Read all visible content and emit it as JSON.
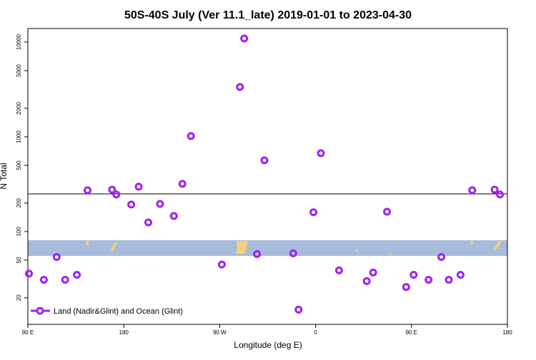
{
  "chart_data": {
    "type": "scatter",
    "title": "50S-40S July (Ver 11.1_late)   2019-01-01 to 2023-04-30",
    "x_label": "Longitude (deg E)",
    "y_label": "N Total",
    "log_y": true,
    "xlim": [
      90,
      540
    ],
    "xticks": [
      {
        "value": 90,
        "label": "90 E"
      },
      {
        "value": 180,
        "label": "180"
      },
      {
        "value": 270,
        "label": "90 W"
      },
      {
        "value": 360,
        "label": "0"
      },
      {
        "value": 450,
        "label": "90 E"
      },
      {
        "value": 540,
        "label": "180"
      }
    ],
    "ylim": [
      10.5,
      13900
    ],
    "yticks": [
      20,
      50,
      100,
      200,
      500,
      1000,
      2000,
      5000,
      10000
    ],
    "hline": 250,
    "series": [
      {
        "name": "Land (Nadir&Glint) and Ocean (Glint)",
        "color": "#a020f0",
        "x": [
          91,
          105,
          117,
          125,
          136,
          146,
          169,
          173,
          187,
          194,
          203,
          214,
          227,
          235,
          243,
          272,
          289,
          293,
          305,
          312,
          339,
          344,
          358,
          365,
          382,
          408,
          414,
          427,
          445,
          452,
          466,
          478,
          485,
          496,
          507,
          528,
          533
        ],
        "values": [
          36,
          31,
          54,
          31,
          35,
          273,
          277,
          246,
          193,
          298,
          125,
          196,
          146,
          319,
          1019,
          45,
          3360,
          10900,
          58,
          565,
          59,
          15,
          160,
          672,
          39,
          30,
          37,
          162,
          26,
          35,
          31,
          54,
          31,
          35,
          273,
          277,
          246
        ]
      }
    ],
    "legend": "bottom-left"
  }
}
